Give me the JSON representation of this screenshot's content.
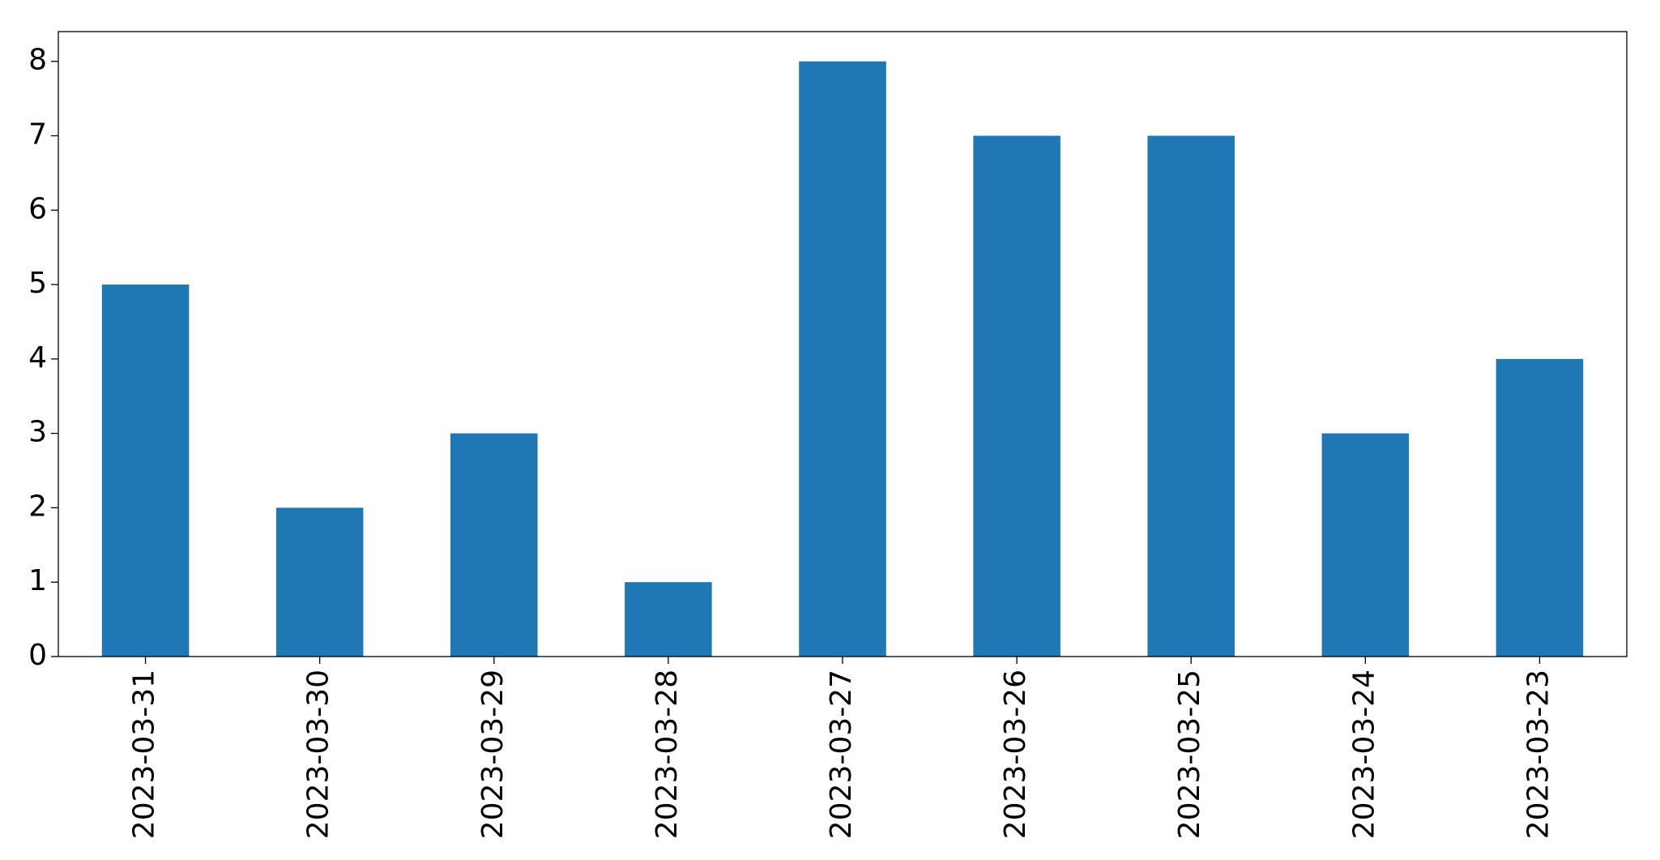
{
  "chart_data": {
    "type": "bar",
    "categories": [
      "2023-03-31",
      "2023-03-30",
      "2023-03-29",
      "2023-03-28",
      "2023-03-27",
      "2023-03-26",
      "2023-03-25",
      "2023-03-24",
      "2023-03-23"
    ],
    "values": [
      5,
      2,
      3,
      1,
      8,
      7,
      7,
      3,
      4
    ],
    "color": "#1f77b4",
    "ylim": [
      0,
      8.4
    ],
    "yticks": [
      0,
      1,
      2,
      3,
      4,
      5,
      6,
      7,
      8
    ],
    "grid": false
  }
}
